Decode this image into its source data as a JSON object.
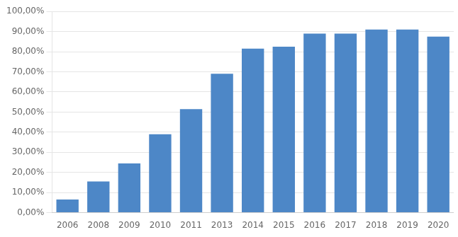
{
  "chart_data": {
    "type": "bar",
    "categories": [
      "2006",
      "2008",
      "2009",
      "2010",
      "2011",
      "2013",
      "2014",
      "2015",
      "2016",
      "2017",
      "2018",
      "2019",
      "2020"
    ],
    "values": [
      6.5,
      15.5,
      24.5,
      39.0,
      51.5,
      69.0,
      81.5,
      82.5,
      89.0,
      89.0,
      91.0,
      91.0,
      87.5
    ],
    "color": "#4D87C7",
    "ylim": [
      0,
      100
    ],
    "yticks": [
      {
        "value": 0,
        "label": "0,00%"
      },
      {
        "value": 10,
        "label": "10,00%"
      },
      {
        "value": 20,
        "label": "20,00%"
      },
      {
        "value": 30,
        "label": "30,00%"
      },
      {
        "value": 40,
        "label": "40,00%"
      },
      {
        "value": 50,
        "label": "50,00%"
      },
      {
        "value": 60,
        "label": "60,00%"
      },
      {
        "value": 70,
        "label": "70,00%"
      },
      {
        "value": 80,
        "label": "80,00%"
      },
      {
        "value": 90,
        "label": "90,00%"
      },
      {
        "value": 100,
        "label": "100,00%"
      }
    ],
    "grid": true
  }
}
